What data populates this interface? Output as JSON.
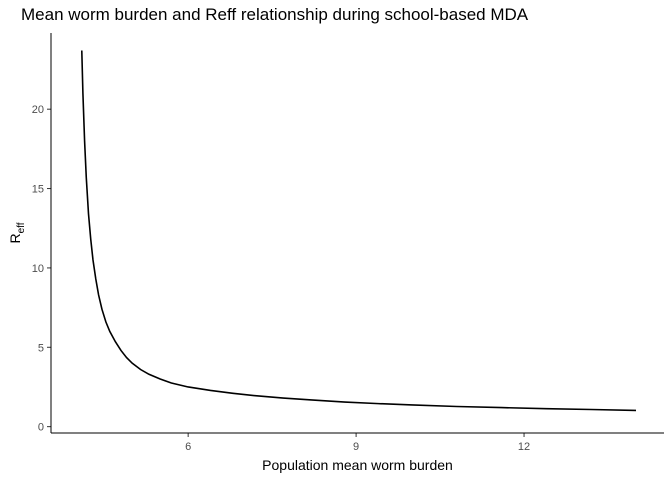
{
  "chart_data": {
    "type": "line",
    "title": "Mean worm burden and Reff relationship during school-based MDA",
    "xlabel": "Population mean worm burden",
    "ylabel": {
      "main": "R",
      "sub": "eff"
    },
    "xlim": [
      3.55,
      14.5
    ],
    "ylim": [
      -0.4,
      24.8
    ],
    "x_ticks": [
      6,
      9,
      12
    ],
    "y_ticks": [
      0,
      5,
      10,
      15,
      20
    ],
    "grid": false,
    "series": [
      {
        "x": [
          4.1,
          4.12,
          4.15,
          4.18,
          4.22,
          4.26,
          4.3,
          4.35,
          4.4,
          4.46,
          4.53,
          4.6,
          4.7,
          4.8,
          4.9,
          5.0,
          5.15,
          5.3,
          5.5,
          5.7,
          6.0,
          6.4,
          6.8,
          7.2,
          7.7,
          8.2,
          8.8,
          9.4,
          10.0,
          10.8,
          11.6,
          12.4,
          13.2,
          14.0
        ],
        "y": [
          23.7,
          21.0,
          18.0,
          15.7,
          13.4,
          11.8,
          10.5,
          9.3,
          8.3,
          7.4,
          6.6,
          6.0,
          5.35,
          4.8,
          4.35,
          4.0,
          3.6,
          3.3,
          3.0,
          2.75,
          2.5,
          2.28,
          2.1,
          1.95,
          1.8,
          1.68,
          1.55,
          1.45,
          1.37,
          1.27,
          1.2,
          1.13,
          1.08,
          1.02
        ]
      }
    ],
    "line_color": "#000000"
  }
}
